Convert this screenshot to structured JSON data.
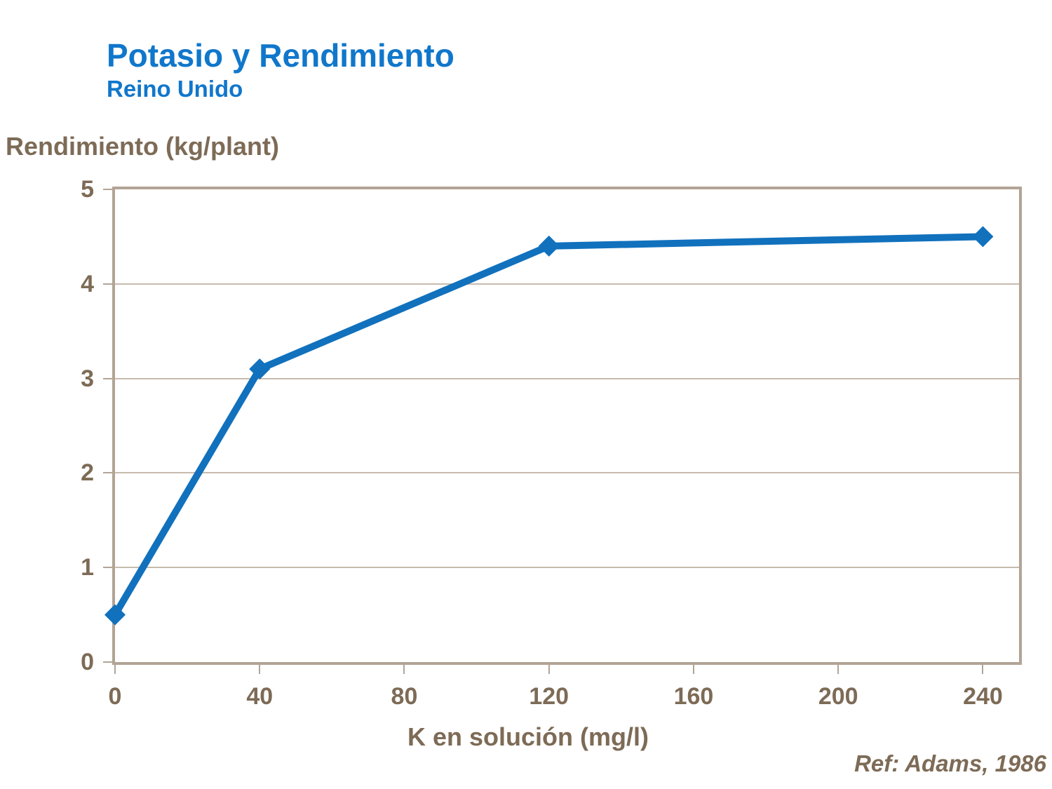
{
  "chart_data": {
    "type": "line",
    "title": "Potasio y Rendimiento",
    "subtitle": "Reino Unido",
    "ylabel": "Rendimiento (kg/plant)",
    "xlabel": "K en solución (mg/l)",
    "reference": "Ref: Adams, 1986",
    "series": [
      {
        "name": "Rendimiento",
        "x": [
          0,
          40,
          120,
          240
        ],
        "y": [
          0.5,
          3.1,
          4.4,
          4.5
        ]
      }
    ],
    "xlim": [
      0,
      250
    ],
    "ylim": [
      0,
      5
    ],
    "x_ticks": [
      0,
      40,
      80,
      120,
      160,
      200,
      240
    ],
    "y_ticks": [
      0,
      1,
      2,
      3,
      4,
      5
    ],
    "grid": "horizontal-only",
    "legend": "none",
    "marker": "diamond",
    "line_width": 10,
    "marker_half_size": 15,
    "colors": {
      "title_blue": "#1077CB",
      "line_blue": "#1171BD",
      "text_tan": "#7D6B56",
      "axis_tan": "#B2A496",
      "grid_tan": "#C7BBAD"
    }
  }
}
